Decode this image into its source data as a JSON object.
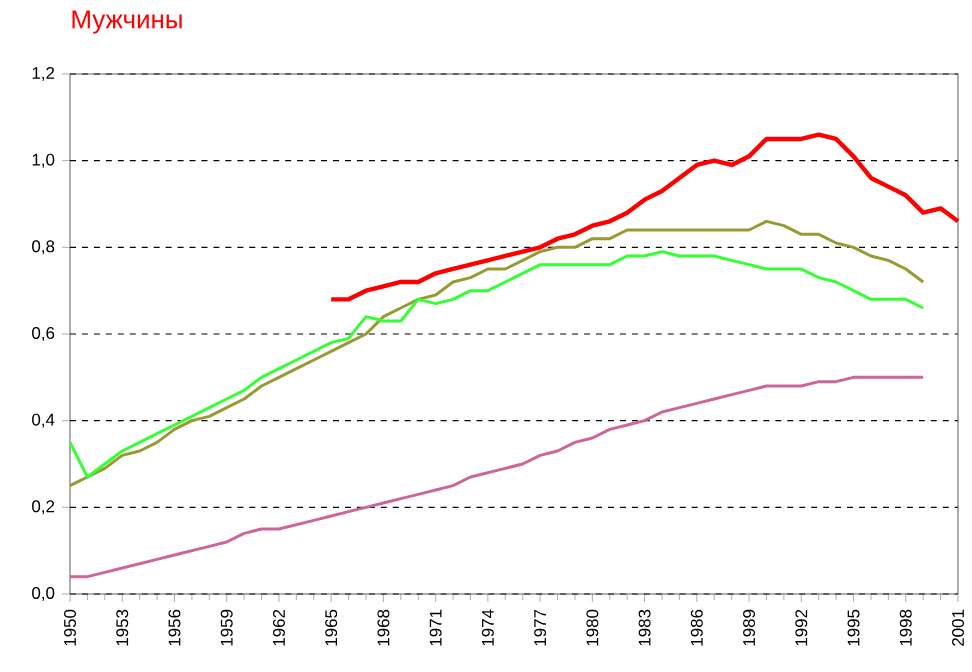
{
  "chart_data": {
    "type": "line",
    "title": "Мужчины",
    "x": [
      1950,
      1951,
      1952,
      1953,
      1954,
      1955,
      1956,
      1957,
      1958,
      1959,
      1960,
      1961,
      1962,
      1963,
      1964,
      1965,
      1966,
      1967,
      1968,
      1969,
      1970,
      1971,
      1972,
      1973,
      1974,
      1975,
      1976,
      1977,
      1978,
      1979,
      1980,
      1981,
      1982,
      1983,
      1984,
      1985,
      1986,
      1987,
      1988,
      1989,
      1990,
      1991,
      1992,
      1993,
      1994,
      1995,
      1996,
      1997,
      1998,
      1999,
      2000,
      2001
    ],
    "series": [
      {
        "color": "#ff0000",
        "values": [
          null,
          null,
          null,
          null,
          null,
          null,
          null,
          null,
          null,
          null,
          null,
          null,
          null,
          null,
          null,
          0.68,
          0.68,
          0.7,
          0.71,
          0.72,
          0.72,
          0.74,
          0.75,
          0.76,
          0.77,
          0.78,
          0.79,
          0.8,
          0.82,
          0.83,
          0.85,
          0.86,
          0.88,
          0.91,
          0.93,
          0.96,
          0.99,
          1.0,
          0.99,
          1.01,
          1.05,
          1.05,
          1.05,
          1.06,
          1.05,
          1.01,
          0.96,
          0.94,
          0.92,
          0.88,
          0.89,
          0.86
        ]
      },
      {
        "color": "#999933",
        "values": [
          0.25,
          0.27,
          0.29,
          0.32,
          0.33,
          0.35,
          0.38,
          0.4,
          0.41,
          0.43,
          0.45,
          0.48,
          0.5,
          0.52,
          0.54,
          0.56,
          0.58,
          0.6,
          0.64,
          0.66,
          0.68,
          0.69,
          0.72,
          0.73,
          0.75,
          0.75,
          0.77,
          0.79,
          0.8,
          0.8,
          0.82,
          0.82,
          0.84,
          0.84,
          0.84,
          0.84,
          0.84,
          0.84,
          0.84,
          0.84,
          0.86,
          0.85,
          0.83,
          0.83,
          0.81,
          0.8,
          0.78,
          0.77,
          0.75,
          0.72,
          null,
          null
        ]
      },
      {
        "color": "#33ff33",
        "values": [
          0.35,
          0.27,
          0.3,
          0.33,
          0.35,
          0.37,
          0.39,
          0.41,
          0.43,
          0.45,
          0.47,
          0.5,
          0.52,
          0.54,
          0.56,
          0.58,
          0.59,
          0.64,
          0.63,
          0.63,
          0.68,
          0.67,
          0.68,
          0.7,
          0.7,
          0.72,
          0.74,
          0.76,
          0.76,
          0.76,
          0.76,
          0.76,
          0.78,
          0.78,
          0.79,
          0.78,
          0.78,
          0.78,
          0.77,
          0.76,
          0.75,
          0.75,
          0.75,
          0.73,
          0.72,
          0.7,
          0.68,
          0.68,
          0.68,
          0.66,
          null,
          null
        ]
      },
      {
        "color": "#cc6699",
        "values": [
          0.04,
          0.04,
          0.05,
          0.06,
          0.07,
          0.08,
          0.09,
          0.1,
          0.11,
          0.12,
          0.14,
          0.15,
          0.15,
          0.16,
          0.17,
          0.18,
          0.19,
          0.2,
          0.21,
          0.22,
          0.23,
          0.24,
          0.25,
          0.27,
          0.28,
          0.29,
          0.3,
          0.32,
          0.33,
          0.35,
          0.36,
          0.38,
          0.39,
          0.4,
          0.42,
          0.43,
          0.44,
          0.45,
          0.46,
          0.47,
          0.48,
          0.48,
          0.48,
          0.49,
          0.49,
          0.5,
          0.5,
          0.5,
          0.5,
          0.5,
          null,
          null
        ]
      }
    ],
    "xlim": [
      1950,
      2001
    ],
    "xticks": [
      1950,
      1953,
      1956,
      1959,
      1962,
      1965,
      1968,
      1971,
      1974,
      1977,
      1980,
      1983,
      1986,
      1989,
      1992,
      1995,
      1998,
      2001
    ],
    "ylim": [
      0,
      1.2
    ],
    "yticks": [
      {
        "value": 0,
        "label": "0,0"
      },
      {
        "value": 0.2,
        "label": "0,2"
      },
      {
        "value": 0.4,
        "label": "0,4"
      },
      {
        "value": 0.6,
        "label": "0,6"
      },
      {
        "value": 0.8,
        "label": "0,8"
      },
      {
        "value": 1.0,
        "label": "1,0"
      },
      {
        "value": 1.2,
        "label": "1,2"
      }
    ],
    "grid": "y",
    "legend": false,
    "line_style": "solid",
    "marker": "none"
  }
}
